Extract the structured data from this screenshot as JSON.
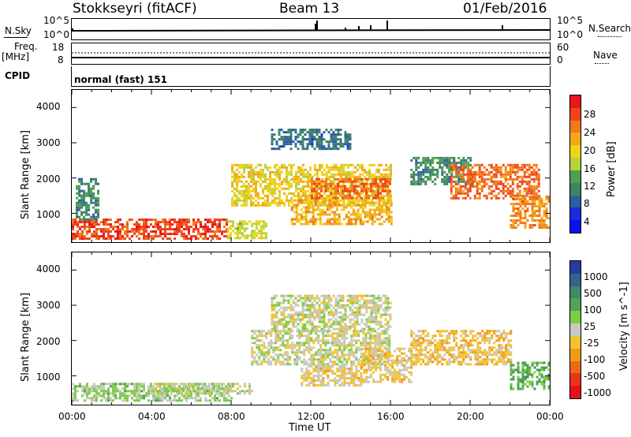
{
  "header": {
    "station": "Stokkseyri (fitACF)",
    "beam": "Beam 13",
    "date": "01/Feb/2016"
  },
  "strip": {
    "nsky_label": "N.Sky",
    "nsearch_label": "N.Search",
    "nsky_ticks": [
      "10^5",
      "10^0"
    ],
    "nsearch_ticks": [
      "10^5",
      "10^0"
    ],
    "freq_label": "Freq.",
    "freq_unit": "[MHz]",
    "freq_ticks": [
      "18",
      "8"
    ],
    "nave_label": "Nave",
    "nave_ticks": [
      "60",
      "0"
    ],
    "cpid_label": "CPID",
    "cpid_value": "normal (fast) 151"
  },
  "axes": {
    "xlabel": "Time UT",
    "ylabel": "Slant Range [km]",
    "xticks": [
      "00:00",
      "04:00",
      "08:00",
      "12:00",
      "16:00",
      "20:00",
      "00:00"
    ],
    "yticks": [
      "4000",
      "3000",
      "2000",
      "1000"
    ]
  },
  "power_bar": {
    "label": "Power [dB]",
    "ticks": [
      "28",
      "24",
      "20",
      "16",
      "12",
      "8",
      "4"
    ],
    "colors": [
      "#e8161b",
      "#f2421d",
      "#f07a18",
      "#f3a81a",
      "#f0d21c",
      "#b2d43c",
      "#4f9f4f",
      "#3d8463",
      "#2c5fa0",
      "#1a2bdc",
      "#0a0ff0"
    ]
  },
  "velocity_bar": {
    "label": "Velocity [m s^-1]",
    "ticks": [
      "1000",
      "500",
      "100",
      "25",
      "-25",
      "-100",
      "-500",
      "-1000"
    ],
    "colors": [
      "#2a3aa0",
      "#34638c",
      "#3e8a6a",
      "#51a358",
      "#7dcc45",
      "#c8c8c0",
      "#f2c22e",
      "#f09a1b",
      "#ea6a18",
      "#e8341a",
      "#e41119"
    ]
  },
  "chart_data": [
    {
      "type": "heatmap",
      "name": "power",
      "x_range_hours": [
        0,
        24
      ],
      "y_range_km": [
        180,
        4500
      ],
      "xlabel": "Time UT",
      "ylabel": "Slant Range [km]",
      "colorbar": "Power [dB]",
      "colorbar_range": [
        0,
        30
      ],
      "regions": [
        {
          "t0": 0.0,
          "t1": 7.8,
          "r0": 300,
          "r1": 850,
          "value": 26
        },
        {
          "t0": 7.8,
          "t1": 9.8,
          "r0": 300,
          "r1": 800,
          "value": 16
        },
        {
          "t0": 0.2,
          "t1": 1.3,
          "r0": 800,
          "r1": 2000,
          "value": 10
        },
        {
          "t0": 8.0,
          "t1": 16.0,
          "r0": 1200,
          "r1": 2400,
          "value": 18
        },
        {
          "t0": 12.0,
          "t1": 16.0,
          "r0": 1400,
          "r1": 2000,
          "value": 24
        },
        {
          "t0": 11.0,
          "t1": 16.0,
          "r0": 700,
          "r1": 1400,
          "value": 20
        },
        {
          "t0": 10.0,
          "t1": 14.0,
          "r0": 2800,
          "r1": 3400,
          "value": 8
        },
        {
          "t0": 17.0,
          "t1": 20.0,
          "r0": 1800,
          "r1": 2600,
          "value": 10
        },
        {
          "t0": 19.0,
          "t1": 23.5,
          "r0": 1400,
          "r1": 2400,
          "value": 24
        },
        {
          "t0": 22.0,
          "t1": 24.0,
          "r0": 600,
          "r1": 1500,
          "value": 22
        }
      ]
    },
    {
      "type": "heatmap",
      "name": "velocity",
      "x_range_hours": [
        0,
        24
      ],
      "y_range_km": [
        180,
        4500
      ],
      "xlabel": "Time UT",
      "ylabel": "Slant Range [km]",
      "colorbar": "Velocity [m s^-1]",
      "colorbar_range": [
        -1000,
        1000
      ],
      "regions": [
        {
          "t0": 0.0,
          "t1": 8.0,
          "r0": 300,
          "r1": 800,
          "value": 120
        },
        {
          "t0": 4.0,
          "t1": 9.0,
          "r0": 500,
          "r1": 800,
          "value": 0
        },
        {
          "t0": 9.0,
          "t1": 16.0,
          "r0": 1300,
          "r1": 2300,
          "value": 0
        },
        {
          "t0": 10.0,
          "t1": 16.0,
          "r0": 2300,
          "r1": 3300,
          "value": 0
        },
        {
          "t0": 11.5,
          "t1": 14.5,
          "r0": 700,
          "r1": 1300,
          "value": -120
        },
        {
          "t0": 14.5,
          "t1": 17.0,
          "r0": 800,
          "r1": 1800,
          "value": -150
        },
        {
          "t0": 17.0,
          "t1": 22.0,
          "r0": 1300,
          "r1": 2300,
          "value": -200
        },
        {
          "t0": 22.0,
          "t1": 24.0,
          "r0": 600,
          "r1": 1400,
          "value": 300
        }
      ]
    }
  ]
}
